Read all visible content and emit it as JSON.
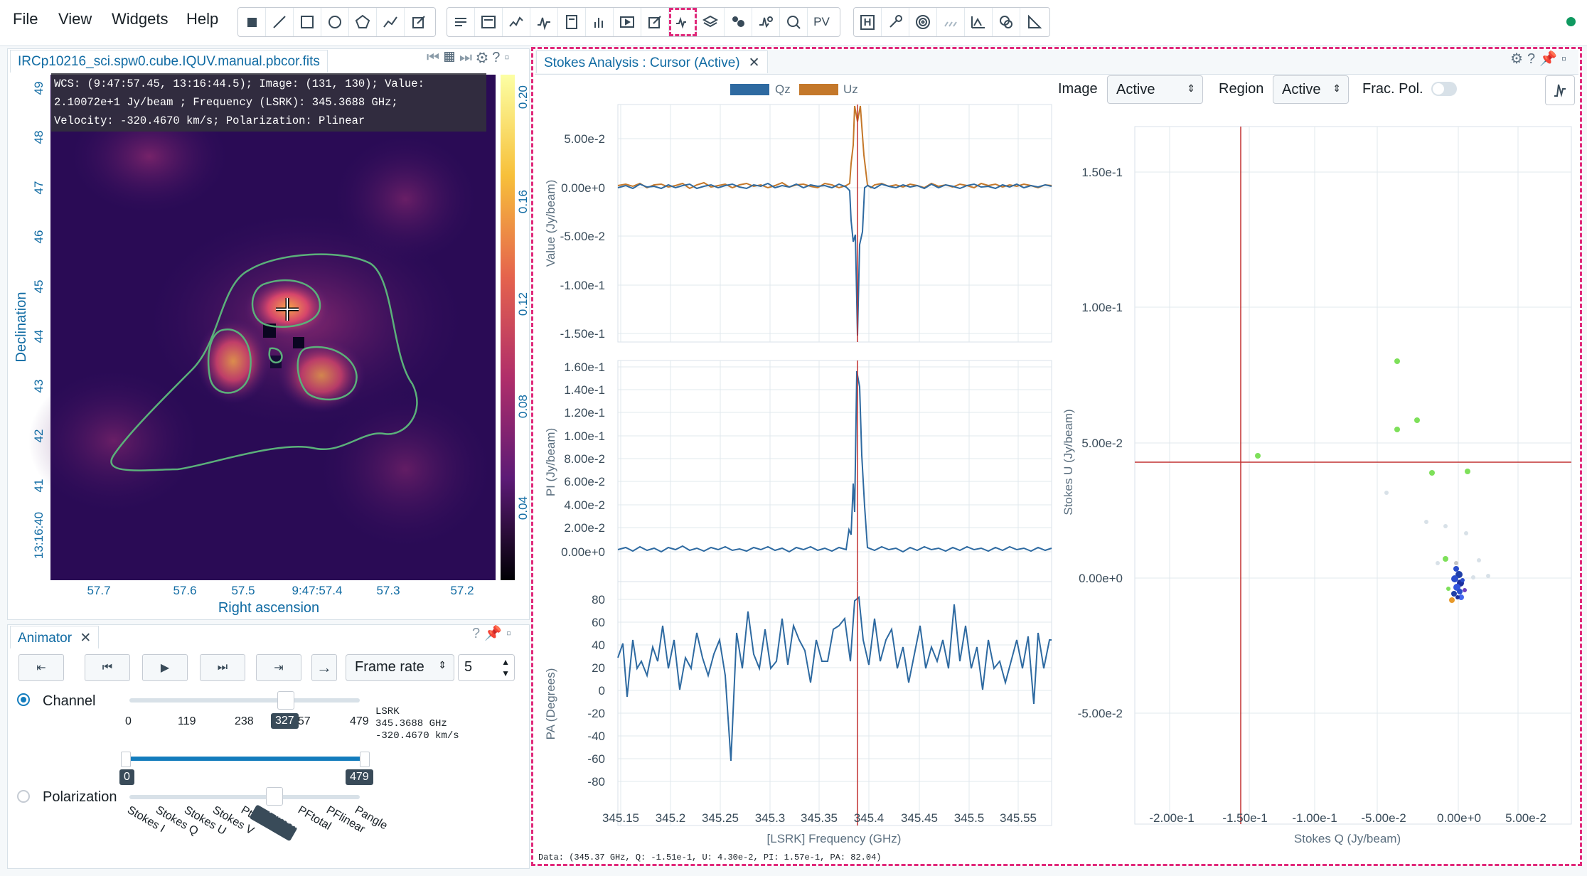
{
  "menu": {
    "file": "File",
    "view": "View",
    "widgets": "Widgets",
    "help": "Help"
  },
  "image_panel": {
    "tab_title": "IRCp10216_sci.spw0.cube.IQUV.manual.pbcor.fits",
    "wcs_line1": "WCS: (9:47:57.45, 13:16:44.5); Image: (131, 130); Value:",
    "wcs_line2": "2.10072e+1 Jy/beam ; Frequency (LSRK): 345.3688 GHz;",
    "wcs_line3": "Velocity: -320.4670 km/s; Polarization: Plinear",
    "y_label": "Declination",
    "x_label": "Right ascension",
    "y_ticks": [
      "49",
      "48",
      "47",
      "46",
      "45",
      "44",
      "43",
      "42",
      "41",
      "13:16:40"
    ],
    "x_ticks": [
      "57.7",
      "57.6",
      "57.5",
      "9:47:57.4",
      "57.3",
      "57.2"
    ],
    "colorbar_ticks": [
      "0.20",
      "0.16",
      "0.12",
      "0.08",
      "0.04"
    ]
  },
  "animator": {
    "tab_title": "Animator",
    "frame_rate_label": "Frame rate",
    "frame_rate_value": "5",
    "channel_label": "Channel",
    "channel_ticks": [
      "0",
      "119",
      "238",
      "357",
      "479"
    ],
    "channel_value": "327",
    "channel_info_line1": "LSRK",
    "channel_info_line2": "345.3688 GHz",
    "channel_info_line3": "-320.4670 km/s",
    "range_min": "0",
    "range_max": "479",
    "polarization_label": "Polarization",
    "pol_ticks": [
      "Stokes I",
      "Stokes Q",
      "Stokes U",
      "Stokes V",
      "Ptotal",
      "Plinear",
      "PFtotal",
      "PFlinear",
      "Pangle"
    ],
    "pol_selected": "Plinear"
  },
  "stokes": {
    "tab_title": "Stokes Analysis : Cursor (Active)",
    "legend_qz": "Qz",
    "legend_uz": "Uz",
    "image_label": "Image",
    "image_value": "Active",
    "region_label": "Region",
    "region_value": "Active",
    "frac_pol_label": "Frac. Pol.",
    "plot1_ylabel": "Value (Jy/beam)",
    "plot1_yticks": [
      "5.00e-2",
      "0.00e+0",
      "-5.00e-2",
      "-1.00e-1",
      "-1.50e-1"
    ],
    "plot2_ylabel": "PI (Jy/beam)",
    "plot2_yticks": [
      "1.60e-1",
      "1.40e-1",
      "1.20e-1",
      "1.00e-1",
      "8.00e-2",
      "6.00e-2",
      "4.00e-2",
      "2.00e-2",
      "0.00e+0"
    ],
    "plot3_ylabel": "PA (Degrees)",
    "plot3_yticks": [
      "80",
      "60",
      "40",
      "20",
      "0",
      "-20",
      "-40",
      "-60",
      "-80"
    ],
    "x_ticks": [
      "345.15",
      "345.2",
      "345.25",
      "345.3",
      "345.35",
      "345.4",
      "345.45",
      "345.5",
      "345.55"
    ],
    "x_label": "[LSRK] Frequency (GHz)",
    "scatter_ylabel": "Stokes U (Jy/beam)",
    "scatter_xlabel": "Stokes Q (Jy/beam)",
    "scatter_yticks": [
      "1.50e-1",
      "1.00e-1",
      "5.00e-2",
      "0.00e+0",
      "-5.00e-2"
    ],
    "scatter_xticks": [
      "-2.00e-1",
      "-1.50e-1",
      "-1.00e-1",
      "-5.00e-2",
      "0.00e+0",
      "5.00e-2"
    ],
    "status": "Data: (345.37 GHz, Q: -1.51e-1, U: 4.30e-2, PI: 1.57e-1, PA: 82.04)"
  },
  "colors": {
    "qz": "#2e6aa1",
    "uz": "#c4782a",
    "cursor": "#c23030",
    "accent": "#e0297a",
    "status_dot": "#0f9960",
    "contour": "#5bb07a"
  }
}
